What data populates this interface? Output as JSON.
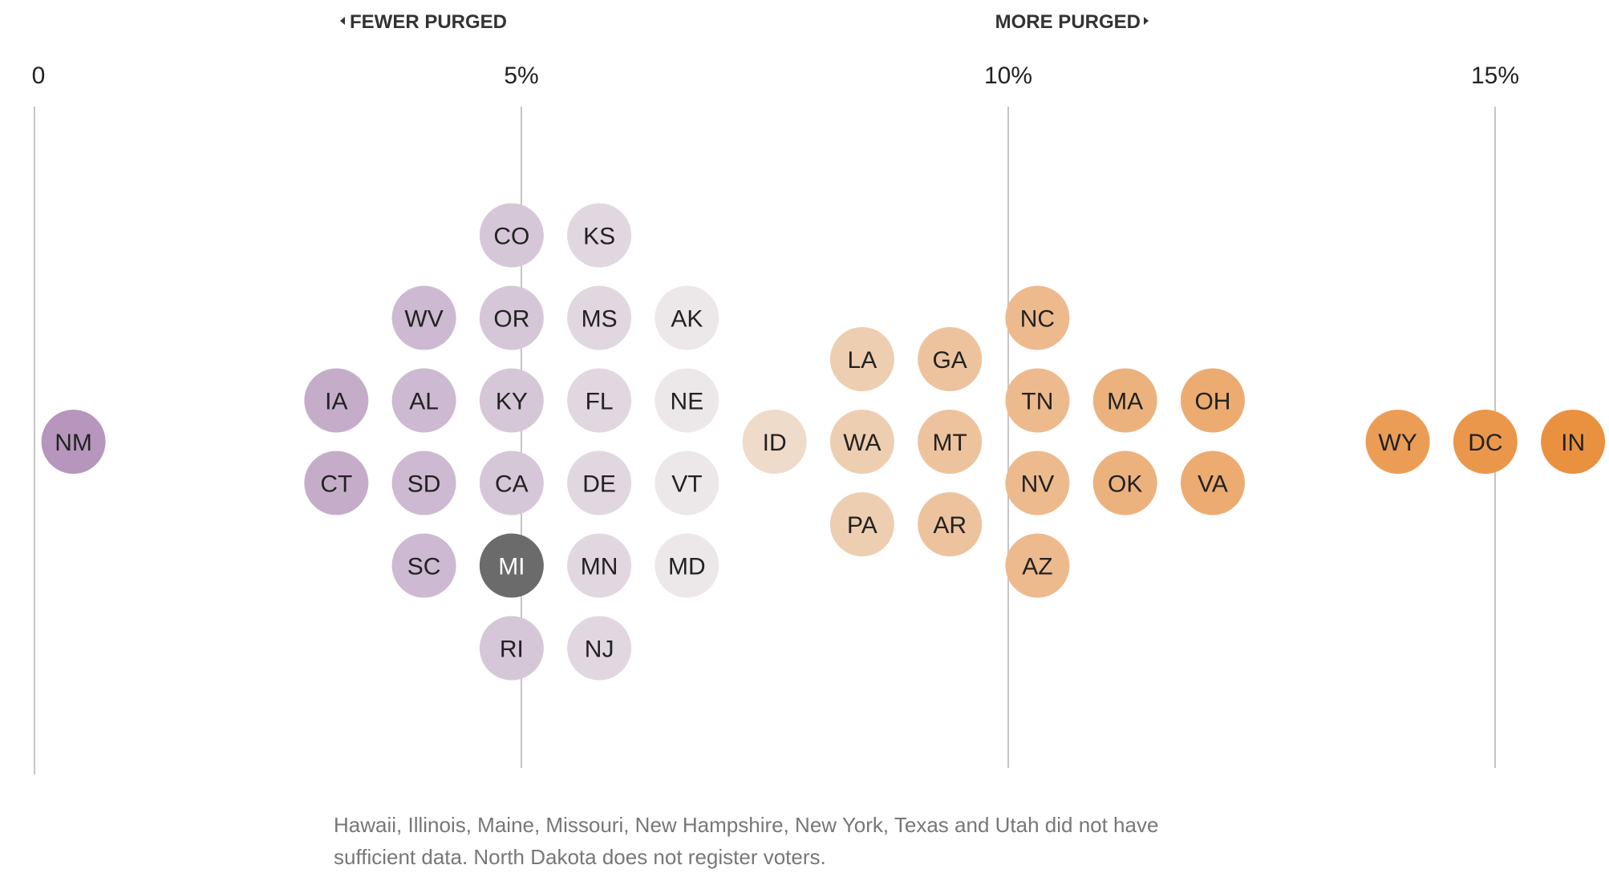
{
  "chart_data": {
    "type": "scatter",
    "subtype": "beeswarm",
    "title": "",
    "direction_labels": {
      "left": "FEWER PURGED",
      "right": "MORE PURGED"
    },
    "xlabel": "",
    "x_ticks": [
      {
        "value": 0,
        "label": "0"
      },
      {
        "value": 5,
        "label": "5%"
      },
      {
        "value": 10,
        "label": "10%"
      },
      {
        "value": 15,
        "label": "15%"
      }
    ],
    "xlim": [
      0,
      16.3
    ],
    "grid": true,
    "color_scale": {
      "low": "#b595bd",
      "mid": "#f0eeed",
      "high": "#ea9140",
      "highlight": "#6b6b6b"
    },
    "points": [
      {
        "label": "NM",
        "x": 0.4,
        "row": 0
      },
      {
        "label": "IA",
        "x": 3.1,
        "row": -1
      },
      {
        "label": "CT",
        "x": 3.1,
        "row": 1
      },
      {
        "label": "WV",
        "x": 4.0,
        "row": -3
      },
      {
        "label": "AL",
        "x": 4.0,
        "row": -1
      },
      {
        "label": "SD",
        "x": 4.0,
        "row": 1
      },
      {
        "label": "SC",
        "x": 4.0,
        "row": 3
      },
      {
        "label": "CO",
        "x": 4.9,
        "row": -5
      },
      {
        "label": "OR",
        "x": 4.9,
        "row": -3
      },
      {
        "label": "KY",
        "x": 4.9,
        "row": -1
      },
      {
        "label": "CA",
        "x": 4.9,
        "row": 1
      },
      {
        "label": "MI",
        "x": 4.9,
        "row": 3,
        "highlight": true
      },
      {
        "label": "RI",
        "x": 4.9,
        "row": 5
      },
      {
        "label": "KS",
        "x": 5.8,
        "row": -5
      },
      {
        "label": "MS",
        "x": 5.8,
        "row": -3
      },
      {
        "label": "FL",
        "x": 5.8,
        "row": -1
      },
      {
        "label": "DE",
        "x": 5.8,
        "row": 1
      },
      {
        "label": "MN",
        "x": 5.8,
        "row": 3
      },
      {
        "label": "NJ",
        "x": 5.8,
        "row": 5
      },
      {
        "label": "AK",
        "x": 6.7,
        "row": -3
      },
      {
        "label": "NE",
        "x": 6.7,
        "row": -1
      },
      {
        "label": "VT",
        "x": 6.7,
        "row": 1
      },
      {
        "label": "MD",
        "x": 6.7,
        "row": 3
      },
      {
        "label": "ID",
        "x": 7.6,
        "row": 0
      },
      {
        "label": "LA",
        "x": 8.5,
        "row": -2
      },
      {
        "label": "WA",
        "x": 8.5,
        "row": 0
      },
      {
        "label": "PA",
        "x": 8.5,
        "row": 2
      },
      {
        "label": "GA",
        "x": 9.4,
        "row": -2
      },
      {
        "label": "MT",
        "x": 9.4,
        "row": 0
      },
      {
        "label": "AR",
        "x": 9.4,
        "row": 2
      },
      {
        "label": "NC",
        "x": 10.3,
        "row": -3
      },
      {
        "label": "TN",
        "x": 10.3,
        "row": -1
      },
      {
        "label": "NV",
        "x": 10.3,
        "row": 1
      },
      {
        "label": "AZ",
        "x": 10.3,
        "row": 3
      },
      {
        "label": "MA",
        "x": 11.2,
        "row": -1
      },
      {
        "label": "OK",
        "x": 11.2,
        "row": 1
      },
      {
        "label": "OH",
        "x": 12.1,
        "row": -1
      },
      {
        "label": "VA",
        "x": 12.1,
        "row": 1
      },
      {
        "label": "WY",
        "x": 14.0,
        "row": 0
      },
      {
        "label": "DC",
        "x": 14.9,
        "row": 0
      },
      {
        "label": "IN",
        "x": 15.8,
        "row": 0
      }
    ]
  },
  "footnote": {
    "line1": "Hawaii, Illinois, Maine, Missouri, New Hampshire, New York, Texas and Utah did not have",
    "line2": "sufficient data. North Dakota does not register voters."
  }
}
